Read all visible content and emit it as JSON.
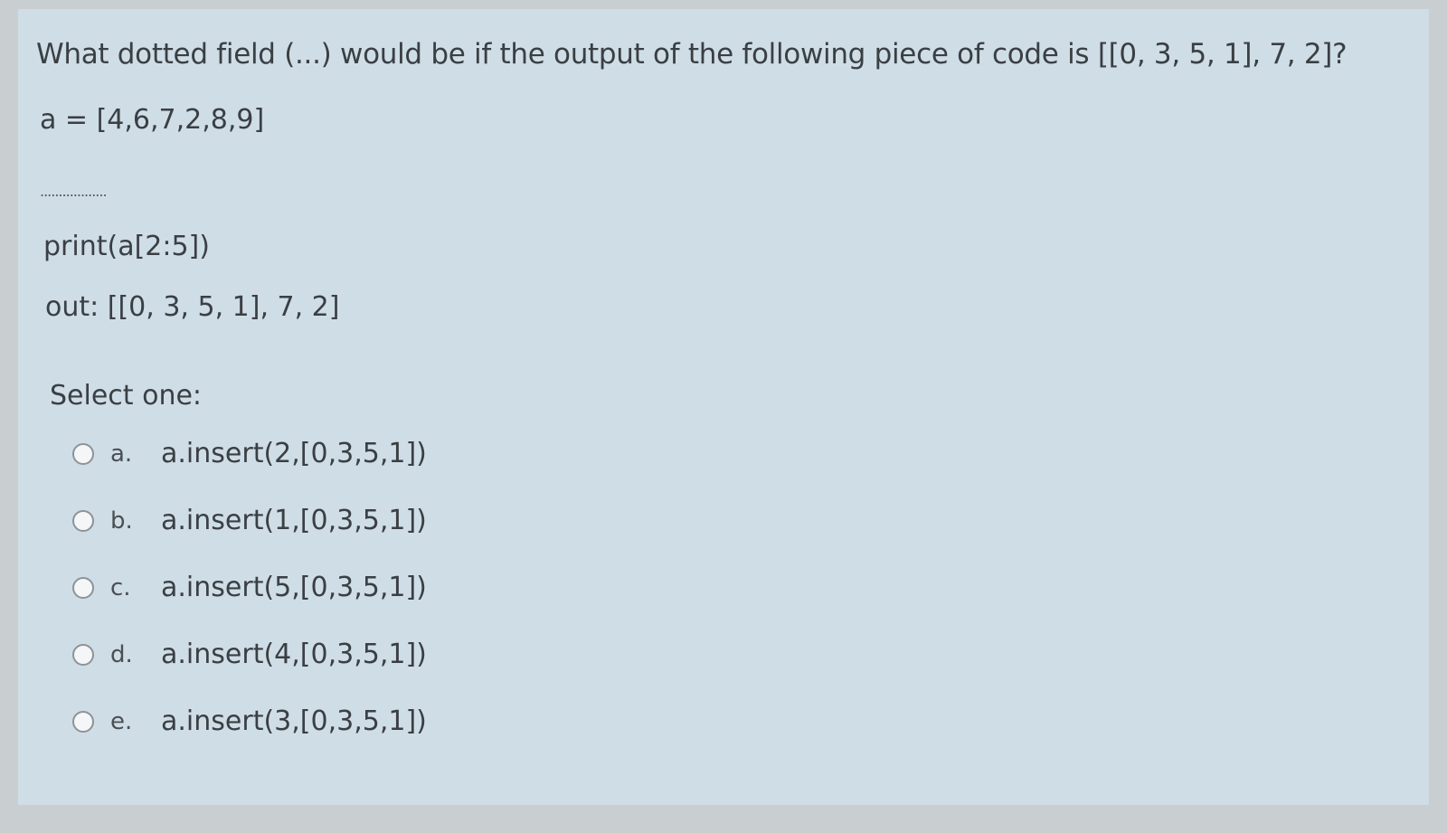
{
  "question": {
    "text": "What dotted field (...) would be if the output of the following piece of code is [[0, 3, 5, 1], 7, 2]?",
    "code_line1": "a = [4,6,7,2,8,9]",
    "dotted_field": "..................",
    "code_line3": "print(a[2:5])",
    "output": "out: [[0, 3, 5, 1], 7, 2]"
  },
  "select_label": "Select one:",
  "options": [
    {
      "letter": "a.",
      "text": "a.insert(2,[0,3,5,1])"
    },
    {
      "letter": "b.",
      "text": "a.insert(1,[0,3,5,1])"
    },
    {
      "letter": "c.",
      "text": "a.insert(5,[0,3,5,1])"
    },
    {
      "letter": "d.",
      "text": "a.insert(4,[0,3,5,1])"
    },
    {
      "letter": "e.",
      "text": "a.insert(3,[0,3,5,1])"
    }
  ]
}
